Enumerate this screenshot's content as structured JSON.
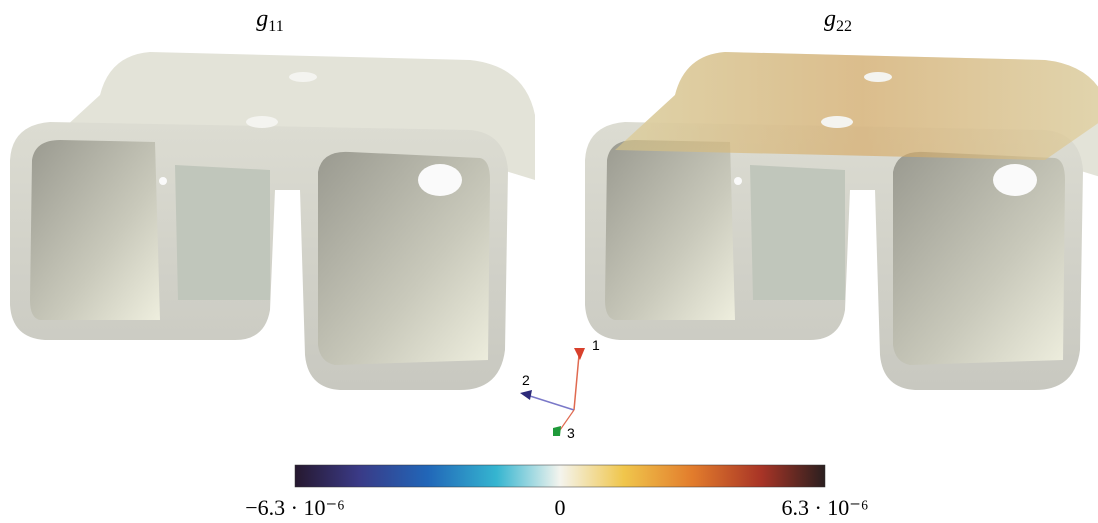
{
  "panels": [
    {
      "title": {
        "symbol": "g",
        "subscript": "11"
      }
    },
    {
      "title": {
        "symbol": "g",
        "subscript": "22"
      }
    }
  ],
  "triad": {
    "axes": [
      "1",
      "2",
      "3"
    ]
  },
  "colorbar": {
    "lim": [
      -6.3e-06,
      6.3e-06
    ],
    "ticks": [
      {
        "value": -6.3e-06,
        "label": "−6.3 · 10⁻⁶"
      },
      0,
      {
        "value": 6.3e-06,
        "label": "6.3 · 10⁻⁶"
      }
    ]
  }
}
